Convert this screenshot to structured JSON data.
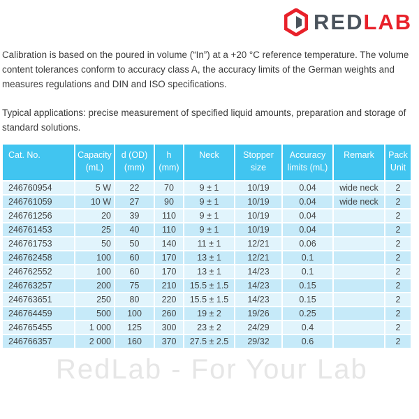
{
  "logo": {
    "text_a": "RED",
    "text_b": "LAB",
    "brand_red": "#e8212a",
    "brand_gray": "#4a535c"
  },
  "paragraphs": [
    "Calibration is based on the poured in volume (“In”) at a +20 °C reference temperature. The volume content tolerances conform to accuracy class A, the accuracy limits of the German weights and measures regulations and DIN and ISO specifications.",
    "Typical applications: precise measurement of specified liquid amounts, preparation and storage of standard solutions."
  ],
  "table": {
    "header_color": "#41c5f0",
    "headers": [
      [
        "Cat. No.",
        ""
      ],
      [
        "Capacity",
        "(mL)"
      ],
      [
        "d (OD)",
        "(mm)"
      ],
      [
        "h",
        "(mm)"
      ],
      [
        "Neck",
        ""
      ],
      [
        "Stopper",
        "size"
      ],
      [
        "Accuracy",
        "limits (mL)"
      ],
      [
        "Remark",
        ""
      ],
      [
        "Pack",
        "Unit"
      ]
    ],
    "rows": [
      [
        "246760954",
        "5 W",
        "22",
        "70",
        "9 ± 1",
        "10/19",
        "0.04",
        "wide neck",
        "2"
      ],
      [
        "246761059",
        "10 W",
        "27",
        "90",
        "9 ± 1",
        "10/19",
        "0.04",
        "wide neck",
        "2"
      ],
      [
        "246761256",
        "20",
        "39",
        "110",
        "9 ± 1",
        "10/19",
        "0.04",
        "",
        "2"
      ],
      [
        "246761453",
        "25",
        "40",
        "110",
        "9 ± 1",
        "10/19",
        "0.04",
        "",
        "2"
      ],
      [
        "246761753",
        "50",
        "50",
        "140",
        "11 ± 1",
        "12/21",
        "0.06",
        "",
        "2"
      ],
      [
        "246762458",
        "100",
        "60",
        "170",
        "13 ± 1",
        "12/21",
        "0.1",
        "",
        "2"
      ],
      [
        "246762552",
        "100",
        "60",
        "170",
        "13 ± 1",
        "14/23",
        "0.1",
        "",
        "2"
      ],
      [
        "246763257",
        "200",
        "75",
        "210",
        "15.5 ± 1.5",
        "14/23",
        "0.15",
        "",
        "2"
      ],
      [
        "246763651",
        "250",
        "80",
        "220",
        "15.5 ± 1.5",
        "14/23",
        "0.15",
        "",
        "2"
      ],
      [
        "246764459",
        "500",
        "100",
        "260",
        "19 ± 2",
        "19/26",
        "0.25",
        "",
        "2"
      ],
      [
        "246765455",
        "1 000",
        "125",
        "300",
        "23 ± 2",
        "24/29",
        "0.4",
        "",
        "2"
      ],
      [
        "246766357",
        "2 000",
        "160",
        "370",
        "27.5 ± 2.5",
        "29/32",
        "0.6",
        "",
        "2"
      ]
    ]
  },
  "watermark": "RedLab - For Your Lab"
}
